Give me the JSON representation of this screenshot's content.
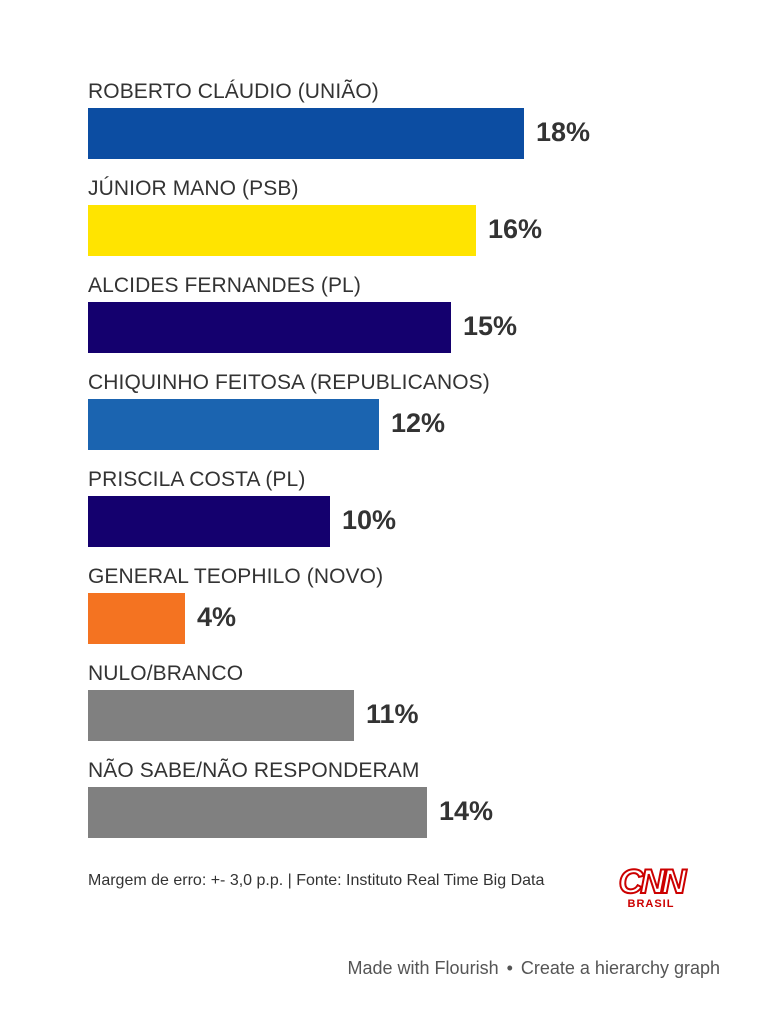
{
  "chart_data": {
    "type": "bar",
    "orientation": "horizontal",
    "categories": [
      "ROBERTO CLÁUDIO (UNIÃO)",
      "JÚNIOR MANO (PSB)",
      "ALCIDES FERNANDES (PL)",
      "CHIQUINHO FEITOSA (REPUBLICANOS)",
      "PRISCILA COSTA (PL)",
      "GENERAL TEOPHILO (NOVO)",
      "NULO/BRANCO",
      "NÃO SABE/NÃO RESPONDERAM"
    ],
    "values": [
      18,
      16,
      15,
      12,
      10,
      4,
      11,
      14
    ],
    "value_labels": [
      "18%",
      "16%",
      "15%",
      "12%",
      "10%",
      "4%",
      "11%",
      "14%"
    ],
    "colors": [
      "#0c4da2",
      "#ffe400",
      "#14006e",
      "#1b64b0",
      "#14006e",
      "#f47321",
      "#808080",
      "#808080"
    ],
    "unit": "%",
    "xlim": [
      0,
      18
    ],
    "grid": false,
    "legend": "none"
  },
  "footer": {
    "note": "Margem de erro: +- 3,0 p.p. | Fonte: Instituto Real Time Big Data",
    "logo_mark": "CNN",
    "logo_sub": "BRASIL",
    "credit_made": "Made with Flourish",
    "credit_separator": "•",
    "credit_create": "Create a hierarchy graph"
  }
}
